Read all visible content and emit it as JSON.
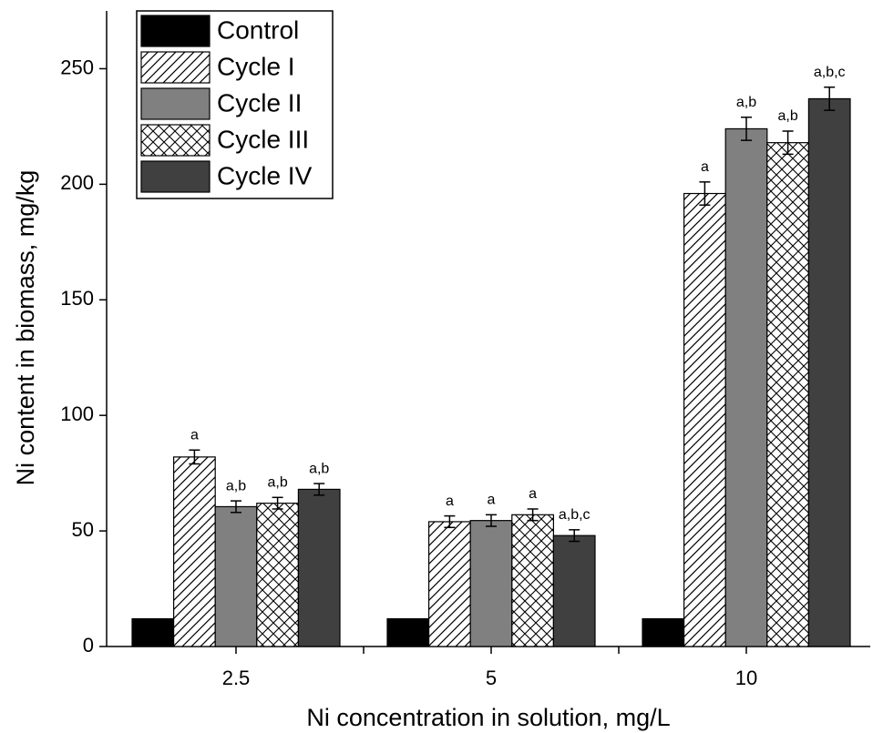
{
  "chart_data": {
    "type": "bar",
    "xlabel": "Ni concentration in solution, mg/L",
    "ylabel": "Ni content in biomass, mg/kg",
    "categories": [
      "2.5",
      "5",
      "10"
    ],
    "ylim": [
      0,
      275
    ],
    "yticks": [
      0,
      50,
      100,
      150,
      200,
      250
    ],
    "legend": "upper left",
    "series": [
      {
        "name": "Control",
        "color": "#000000",
        "pattern": "solid",
        "values": [
          12,
          12,
          12
        ]
      },
      {
        "name": "Cycle I",
        "color": "#ffffff",
        "pattern": "diagonal",
        "values": [
          82,
          54,
          196
        ],
        "errors": [
          3,
          2.5,
          5
        ],
        "annotations": [
          "a",
          "a",
          "a"
        ]
      },
      {
        "name": "Cycle II",
        "color": "#808080",
        "pattern": "solid",
        "values": [
          60.5,
          54.5,
          224
        ],
        "errors": [
          2.5,
          2.5,
          5
        ],
        "annotations": [
          "a,b",
          "a",
          "a,b"
        ]
      },
      {
        "name": "Cycle III",
        "color": "#ffffff",
        "pattern": "crosshatch",
        "values": [
          62,
          57,
          218
        ],
        "errors": [
          2.5,
          2.5,
          5
        ],
        "annotations": [
          "a,b",
          "a",
          "a,b"
        ]
      },
      {
        "name": "Cycle IV",
        "color": "#404040",
        "pattern": "solid",
        "values": [
          68,
          48,
          237
        ],
        "errors": [
          2.5,
          2.5,
          5
        ],
        "annotations": [
          "a,b",
          "a,b,c",
          "a,b,c"
        ]
      }
    ]
  }
}
